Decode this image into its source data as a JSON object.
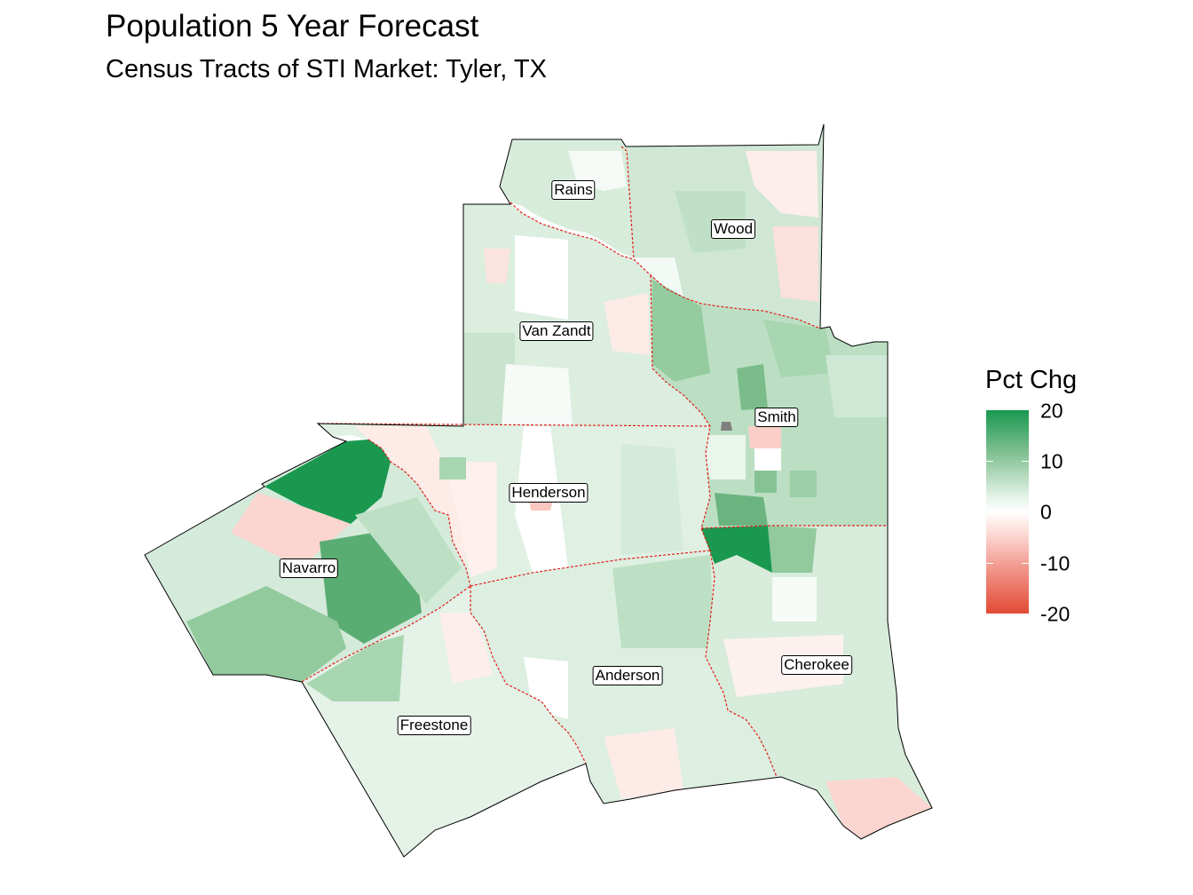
{
  "title": "Population 5 Year Forecast",
  "subtitle": "Census Tracts of STI Market: Tyler, TX",
  "legend": {
    "title": "Pct Chg",
    "labels": [
      "20",
      "10",
      "0",
      "-10",
      "-20"
    ],
    "scale_min": -20,
    "scale_max": 20,
    "colors": {
      "high": "#1a9850",
      "mid": "#ffffff",
      "low": "#e14b36"
    }
  },
  "counties": {
    "rains": "Rains",
    "wood": "Wood",
    "van_zandt": "Van Zandt",
    "smith": "Smith",
    "henderson": "Henderson",
    "navarro": "Navarro",
    "anderson": "Anderson",
    "cherokee": "Cherokee",
    "freestone": "Freestone"
  }
}
